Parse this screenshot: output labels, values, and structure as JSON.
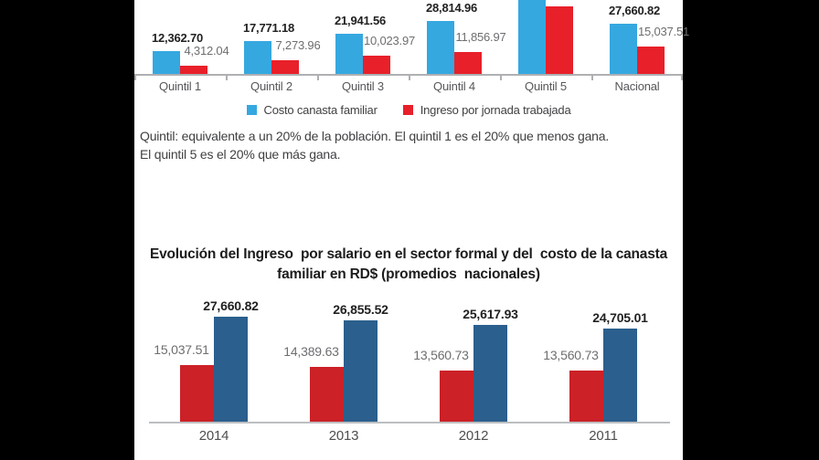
{
  "page": {
    "background_color": "#000000",
    "panel_color": "#ffffff",
    "description": "Infografía: costo de la canasta familiar vs ingreso, República Dominicana (RD$)"
  },
  "colors": {
    "top_blue": "#35a8e0",
    "top_red": "#e8202a",
    "bottom_red": "#cb2127",
    "bottom_blue": "#2b5f8d",
    "axis_gray": "#aeb0b3",
    "value_label_dark": "#212123",
    "value_label_gray": "#6d6e71",
    "category_label_gray": "#56575a"
  },
  "chart_data": [
    {
      "id": "costo-canasta-vs-ingreso-por-quintil",
      "type": "bar",
      "categories": [
        "Quintil 1",
        "Quintil 2",
        "Quintil 3",
        "Quintil 4",
        "Quintil 5",
        "Nacional"
      ],
      "series": [
        {
          "name": "Costo canasta familiar",
          "color": "#35a8e0",
          "values": [
            12362.7,
            17771.18,
            21941.56,
            28814.96,
            null,
            27660.82
          ],
          "labels": [
            "12,362.70",
            "17,771.18",
            "21,941.56",
            "28,814.96",
            "",
            "27,660.82"
          ]
        },
        {
          "name": "Ingreso por jornada trabajada",
          "color": "#e8202a",
          "values": [
            4312.04,
            7273.96,
            10023.97,
            11856.97,
            null,
            15037.51
          ],
          "labels": [
            "4,312.04",
            "7,273.96",
            "10,023.97",
            "11,856.97",
            "",
            "15,037.51"
          ]
        }
      ],
      "legend_position": "bottom",
      "grid": false,
      "note": "Las barras del Quintil 5 quedan cortadas por el borde superior de la imagen; sus valores no son visibles."
    },
    {
      "id": "evolucion-ingreso-y-canasta",
      "type": "bar",
      "title": "Evolución del Ingreso por salario en el sector formal y del costo de la canasta familiar en RD$ (promedios nacionales)",
      "title_line1": "Evolución del Ingreso  por salario en el sector formal y del  costo de la canasta",
      "title_line2": "familiar en RD$ (promedios  nacionales)",
      "categories": [
        "2014",
        "2013",
        "2012",
        "2011"
      ],
      "series": [
        {
          "name": "Ingreso por salario en el sector formal",
          "color": "#cb2127",
          "values": [
            15037.51,
            14389.63,
            13560.73,
            13560.73
          ],
          "labels": [
            "15,037.51",
            "14,389.63",
            "13,560.73",
            "13,560.73"
          ]
        },
        {
          "name": "Costo de la canasta familiar",
          "color": "#2b5f8d",
          "values": [
            27660.82,
            26855.52,
            25617.93,
            24705.01
          ],
          "labels": [
            "27,660.82",
            "26,855.52",
            "25,617.93",
            "24,705.01"
          ]
        }
      ],
      "legend_position": "none",
      "grid": false
    }
  ],
  "legend": {
    "item1": "Costo canasta familiar",
    "item2": "Ingreso por jornada trabajada"
  },
  "caption": {
    "line1": "Quintil: equivalente a un 20% de la población. El quintil 1 es el 20% que menos gana.",
    "line2": "El quintil 5 es el 20% que más gana."
  }
}
